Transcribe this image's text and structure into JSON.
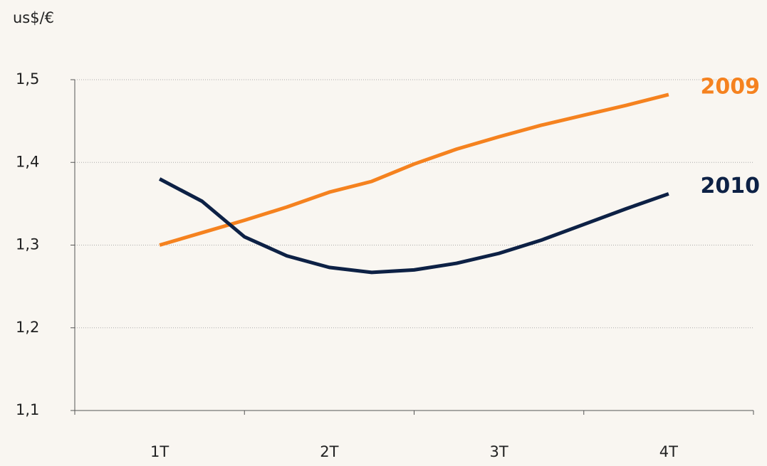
{
  "chart_data": {
    "type": "line",
    "title": "us$/€",
    "categories": [
      "1T",
      null,
      null,
      null,
      "2T",
      null,
      null,
      null,
      "3T",
      null,
      null,
      null,
      "4T"
    ],
    "series": [
      {
        "name": "2009",
        "color": "#f5821f",
        "values": [
          1.3,
          1.315,
          1.33,
          1.346,
          1.364,
          1.377,
          1.398,
          1.416,
          1.431,
          1.445,
          1.457,
          1.469,
          1.482
        ]
      },
      {
        "name": "2010",
        "color": "#0d2145",
        "values": [
          1.38,
          1.353,
          1.31,
          1.287,
          1.273,
          1.267,
          1.27,
          1.278,
          1.29,
          1.306,
          1.325,
          1.344,
          1.362
        ]
      }
    ],
    "ylim": [
      1.1,
      1.5
    ],
    "yticks": [
      {
        "value": 1.1,
        "label": "1,1"
      },
      {
        "value": 1.2,
        "label": "1,2"
      },
      {
        "value": 1.3,
        "label": "1,3"
      },
      {
        "value": 1.4,
        "label": "1,4"
      },
      {
        "value": 1.5,
        "label": "1,5"
      }
    ],
    "grid": true
  }
}
